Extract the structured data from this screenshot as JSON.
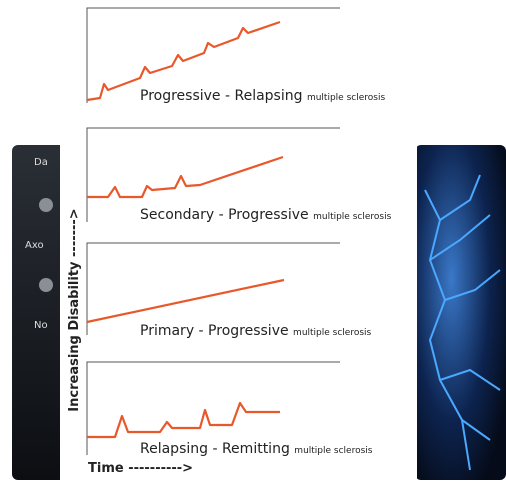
{
  "background": {
    "left_labels": [
      "Da",
      "Axo",
      "No"
    ]
  },
  "axes": {
    "y_label": "Increasing Disability ------->",
    "x_label": "Time ---------->"
  },
  "panels": [
    {
      "title": "Progressive - Relapsing",
      "subtitle": "multiple sclerosis"
    },
    {
      "title": "Secondary - Progressive",
      "subtitle": "multiple sclerosis"
    },
    {
      "title": "Primary - Progressive",
      "subtitle": "multiple sclerosis"
    },
    {
      "title": "Relapsing - Remitting",
      "subtitle": "multiple sclerosis"
    }
  ]
}
